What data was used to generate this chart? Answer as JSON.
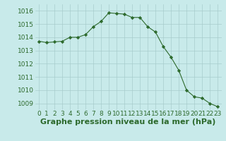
{
  "x": [
    0,
    1,
    2,
    3,
    4,
    5,
    6,
    7,
    8,
    9,
    10,
    11,
    12,
    13,
    14,
    15,
    16,
    17,
    18,
    19,
    20,
    21,
    22,
    23
  ],
  "y": [
    1013.7,
    1013.6,
    1013.65,
    1013.7,
    1014.0,
    1014.0,
    1014.2,
    1014.8,
    1015.2,
    1015.85,
    1015.8,
    1015.75,
    1015.5,
    1015.5,
    1014.8,
    1014.4,
    1013.3,
    1012.5,
    1011.5,
    1010.0,
    1009.5,
    1009.4,
    1009.0,
    1008.75
  ],
  "ylim": [
    1008.5,
    1016.5
  ],
  "yticks": [
    1009,
    1010,
    1011,
    1012,
    1013,
    1014,
    1015,
    1016
  ],
  "xticks": [
    0,
    1,
    2,
    3,
    4,
    5,
    6,
    7,
    8,
    9,
    10,
    11,
    12,
    13,
    14,
    15,
    16,
    17,
    18,
    19,
    20,
    21,
    22,
    23
  ],
  "xlabel": "Graphe pression niveau de la mer (hPa)",
  "line_color": "#2d6a2d",
  "marker": "D",
  "marker_size": 2.2,
  "bg_color": "#c8eaea",
  "grid_color": "#a8cccc",
  "tick_label_fontsize": 6.5,
  "xlabel_fontsize": 8,
  "xlabel_fontweight": "bold"
}
